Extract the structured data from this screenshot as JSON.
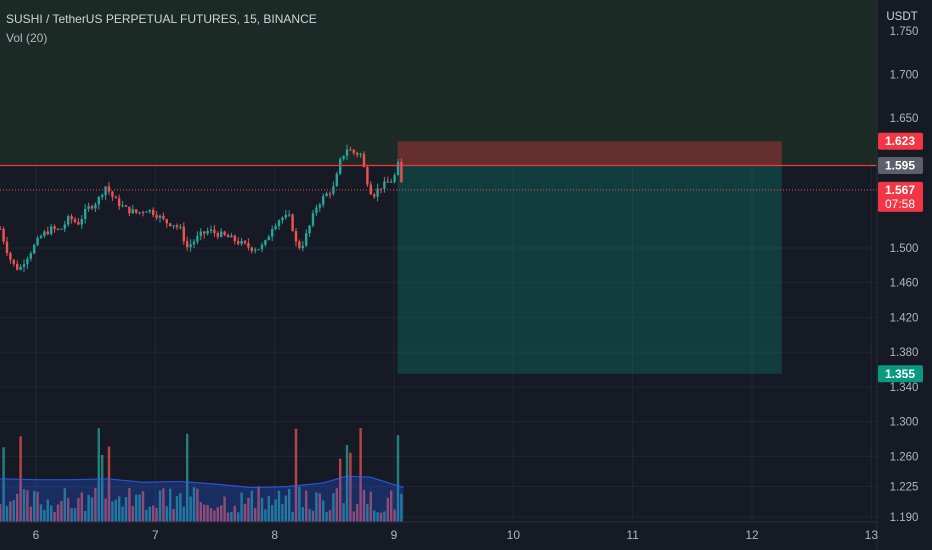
{
  "header": {
    "symbol_title": "SUSHI / TetherUS PERPETUAL FUTURES, 15, BINANCE",
    "indicator": "Vol (20)"
  },
  "axis": {
    "currency": "USDT",
    "price_ticks": [
      "1.750",
      "1.700",
      "1.650",
      "1.500",
      "1.460",
      "1.420",
      "1.380",
      "1.340",
      "1.300",
      "1.260",
      "1.225",
      "1.190"
    ],
    "time_ticks": [
      "6",
      "7",
      "8",
      "9",
      "10",
      "11",
      "12",
      "13"
    ]
  },
  "price_tags": {
    "stop": "1.623",
    "entry": "1.595",
    "last": "1.567",
    "countdown": "07:58",
    "target": "1.355"
  },
  "colors": {
    "background": "#161a25",
    "up": "#26a69a",
    "down": "#ef5350",
    "stop_zone": "#f23645",
    "target_zone": "#089981",
    "volume_ma": "#2962ff",
    "text": "#b2b5be"
  },
  "chart_data": {
    "type": "candlestick",
    "ylim": [
      1.185,
      1.76
    ],
    "xlim": [
      5.7,
      13.1
    ],
    "price_series_start_day": 5.7,
    "price_series_end_day": 9.08,
    "price_path": [
      [
        5.7,
        1.522
      ],
      [
        5.75,
        1.5
      ],
      [
        5.8,
        1.482
      ],
      [
        5.86,
        1.475
      ],
      [
        5.9,
        1.485
      ],
      [
        5.96,
        1.497
      ],
      [
        6.05,
        1.515
      ],
      [
        6.13,
        1.522
      ],
      [
        6.2,
        1.52
      ],
      [
        6.28,
        1.535
      ],
      [
        6.35,
        1.528
      ],
      [
        6.43,
        1.545
      ],
      [
        6.52,
        1.555
      ],
      [
        6.58,
        1.572
      ],
      [
        6.66,
        1.555
      ],
      [
        6.75,
        1.545
      ],
      [
        6.85,
        1.54
      ],
      [
        6.92,
        1.545
      ],
      [
        7.0,
        1.54
      ],
      [
        7.08,
        1.53
      ],
      [
        7.15,
        1.528
      ],
      [
        7.22,
        1.52
      ],
      [
        7.26,
        1.5
      ],
      [
        7.3,
        1.505
      ],
      [
        7.38,
        1.515
      ],
      [
        7.45,
        1.52
      ],
      [
        7.55,
        1.515
      ],
      [
        7.65,
        1.51
      ],
      [
        7.72,
        1.505
      ],
      [
        7.8,
        1.5
      ],
      [
        7.88,
        1.5
      ],
      [
        7.92,
        1.505
      ],
      [
        7.98,
        1.525
      ],
      [
        8.05,
        1.535
      ],
      [
        8.13,
        1.535
      ],
      [
        8.18,
        1.505
      ],
      [
        8.22,
        1.5
      ],
      [
        8.28,
        1.52
      ],
      [
        8.35,
        1.548
      ],
      [
        8.42,
        1.56
      ],
      [
        8.5,
        1.57
      ],
      [
        8.55,
        1.6
      ],
      [
        8.6,
        1.615
      ],
      [
        8.66,
        1.61
      ],
      [
        8.72,
        1.608
      ],
      [
        8.77,
        1.58
      ],
      [
        8.82,
        1.56
      ],
      [
        8.88,
        1.57
      ],
      [
        8.95,
        1.575
      ],
      [
        9.0,
        1.58
      ],
      [
        9.03,
        1.598
      ],
      [
        9.06,
        1.575
      ],
      [
        9.08,
        1.567
      ]
    ],
    "volume_ma_path": [
      [
        5.7,
        1.234
      ],
      [
        6.0,
        1.233
      ],
      [
        6.3,
        1.233
      ],
      [
        6.6,
        1.234
      ],
      [
        6.9,
        1.23
      ],
      [
        7.2,
        1.231
      ],
      [
        7.5,
        1.228
      ],
      [
        7.8,
        1.224
      ],
      [
        8.1,
        1.225
      ],
      [
        8.4,
        1.229
      ],
      [
        8.6,
        1.237
      ],
      [
        8.8,
        1.236
      ],
      [
        9.08,
        1.224
      ]
    ],
    "volume_spikes_day": [
      5.72,
      5.88,
      6.54,
      6.62,
      7.26,
      8.18,
      8.56,
      8.62,
      8.72,
      9.03
    ],
    "position": {
      "type": "short",
      "entry": 1.595,
      "stop": 1.623,
      "target": 1.355,
      "start_day": 9.03,
      "end_day": 12.25
    },
    "last_price": 1.567
  }
}
